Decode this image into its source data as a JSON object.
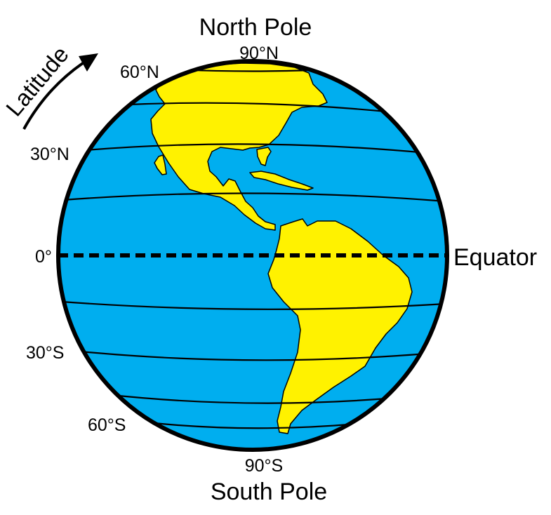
{
  "poles": {
    "north": "North Pole",
    "south": "South Pole"
  },
  "arrow_label": "Latitude",
  "equator_label": "Equator",
  "latitudes": {
    "n90": "90°N",
    "n60": "60°N",
    "n30": "30°N",
    "zero": "0°",
    "s30": "30°S",
    "s60": "60°S",
    "s90": "90°S"
  },
  "colors": {
    "ocean": "#00AEEF",
    "land": "#FFF200",
    "outline": "#000000"
  }
}
